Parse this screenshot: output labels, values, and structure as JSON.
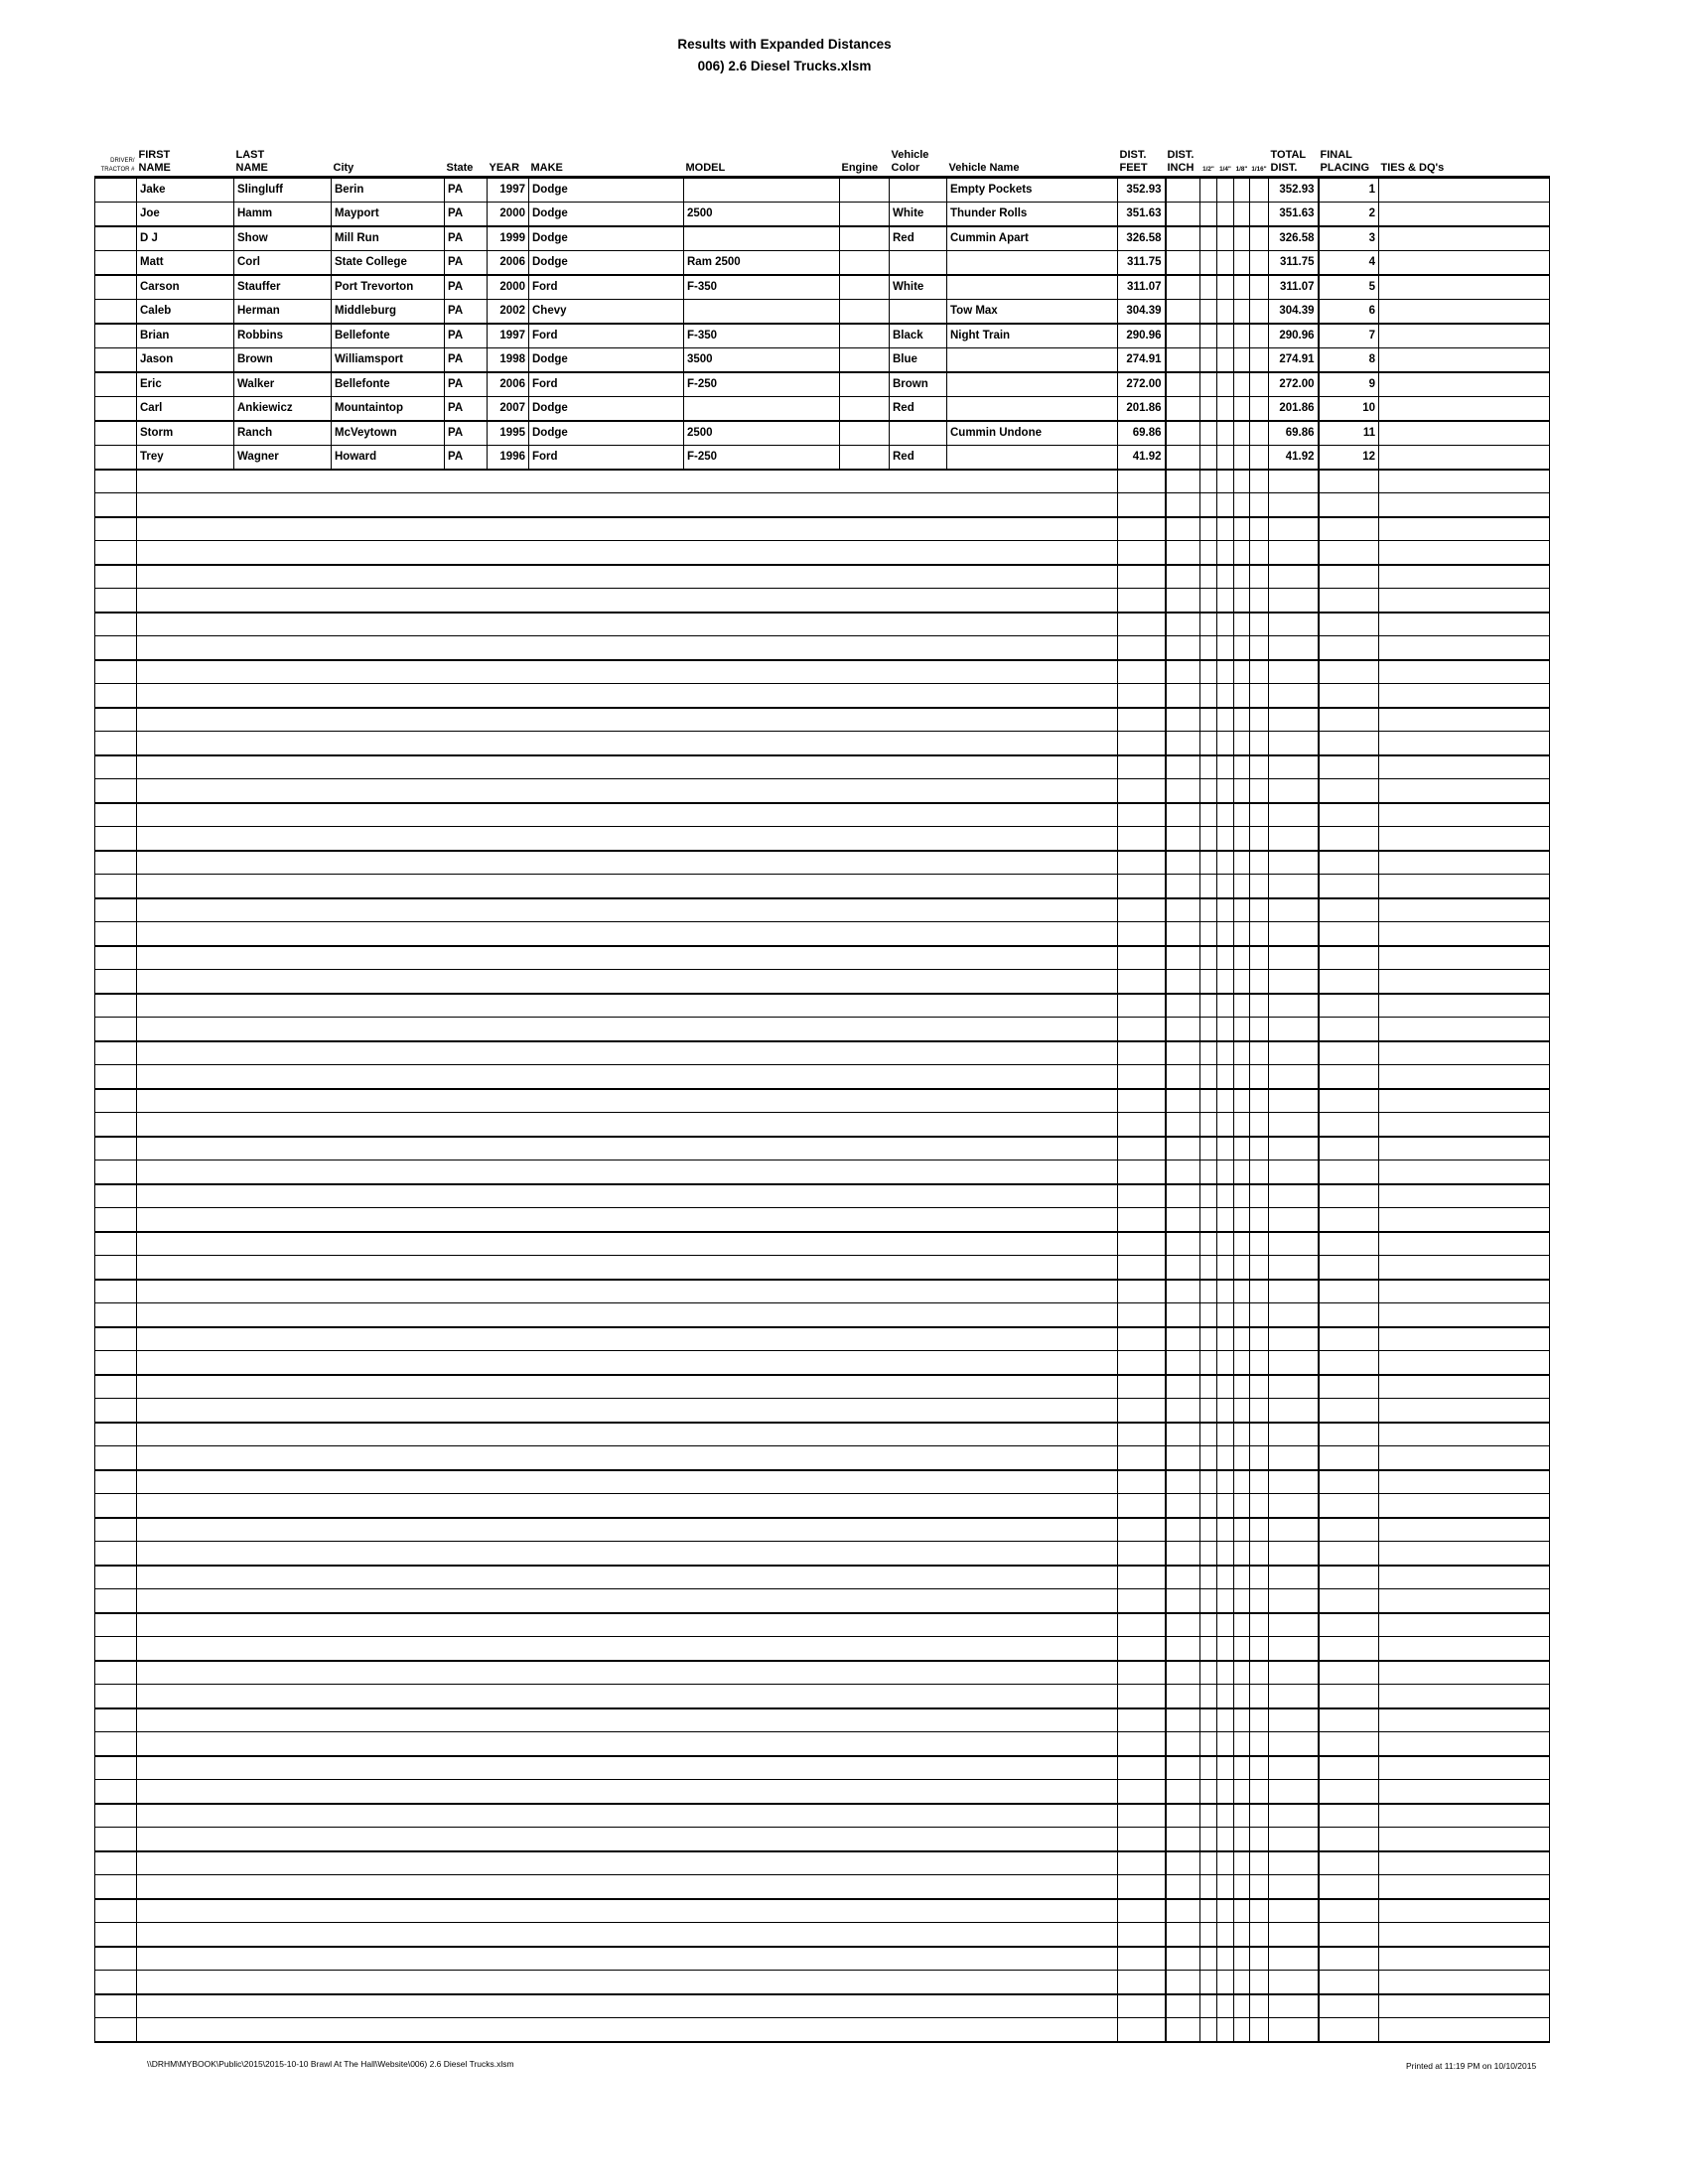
{
  "title": {
    "line1": "Results with Expanded Distances",
    "line2": "006) 2.6 Diesel Trucks.xlsm"
  },
  "table": {
    "headers": [
      "DRIVER/\nTRACTOR #",
      "FIRST\nNAME",
      "LAST\nNAME",
      "City",
      "State",
      "YEAR",
      "MAKE",
      "MODEL",
      "Engine",
      "Vehicle\nColor",
      "Vehicle Name",
      "DIST.\nFEET",
      "DIST.\nINCH",
      "1/2\"",
      "1/4\"",
      "1/8\"",
      "1/16\"",
      "TOTAL\nDIST.",
      "FINAL\nPLACING",
      "TIES & DQ's"
    ],
    "rows": [
      {
        "first": "Jake",
        "last": "Slingluff",
        "city": "Berin",
        "state": "PA",
        "year": "1997",
        "make": "Dodge",
        "model": "",
        "engine": "",
        "color": "",
        "vehicle_name": "Empty Pockets",
        "dist_feet": "352.93",
        "dist_inch": "",
        "total_dist": "352.93",
        "placing": "1",
        "ties": ""
      },
      {
        "first": "Joe",
        "last": "Hamm",
        "city": "Mayport",
        "state": "PA",
        "year": "2000",
        "make": "Dodge",
        "model": "2500",
        "engine": "",
        "color": "White",
        "vehicle_name": "Thunder Rolls",
        "dist_feet": "351.63",
        "dist_inch": "",
        "total_dist": "351.63",
        "placing": "2",
        "ties": ""
      },
      {
        "first": "D J",
        "last": "Show",
        "city": "Mill Run",
        "state": "PA",
        "year": "1999",
        "make": "Dodge",
        "model": "",
        "engine": "",
        "color": "Red",
        "vehicle_name": "Cummin Apart",
        "dist_feet": "326.58",
        "dist_inch": "",
        "total_dist": "326.58",
        "placing": "3",
        "ties": ""
      },
      {
        "first": "Matt",
        "last": "Corl",
        "city": "State College",
        "state": "PA",
        "year": "2006",
        "make": "Dodge",
        "model": "Ram 2500",
        "engine": "",
        "color": "",
        "vehicle_name": "",
        "dist_feet": "311.75",
        "dist_inch": "",
        "total_dist": "311.75",
        "placing": "4",
        "ties": ""
      },
      {
        "first": "Carson",
        "last": "Stauffer",
        "city": "Port Trevorton",
        "state": "PA",
        "year": "2000",
        "make": "Ford",
        "model": "F-350",
        "engine": "",
        "color": "White",
        "vehicle_name": "",
        "dist_feet": "311.07",
        "dist_inch": "",
        "total_dist": "311.07",
        "placing": "5",
        "ties": ""
      },
      {
        "first": "Caleb",
        "last": "Herman",
        "city": "Middleburg",
        "state": "PA",
        "year": "2002",
        "make": "Chevy",
        "model": "",
        "engine": "",
        "color": "",
        "vehicle_name": "Tow Max",
        "dist_feet": "304.39",
        "dist_inch": "",
        "total_dist": "304.39",
        "placing": "6",
        "ties": ""
      },
      {
        "first": "Brian",
        "last": "Robbins",
        "city": "Bellefonte",
        "state": "PA",
        "year": "1997",
        "make": "Ford",
        "model": "F-350",
        "engine": "",
        "color": "Black",
        "vehicle_name": "Night Train",
        "dist_feet": "290.96",
        "dist_inch": "",
        "total_dist": "290.96",
        "placing": "7",
        "ties": ""
      },
      {
        "first": "Jason",
        "last": "Brown",
        "city": "Williamsport",
        "state": "PA",
        "year": "1998",
        "make": "Dodge",
        "model": "3500",
        "engine": "",
        "color": "Blue",
        "vehicle_name": "",
        "dist_feet": "274.91",
        "dist_inch": "",
        "total_dist": "274.91",
        "placing": "8",
        "ties": ""
      },
      {
        "first": "Eric",
        "last": "Walker",
        "city": "Bellefonte",
        "state": "PA",
        "year": "2006",
        "make": "Ford",
        "model": "F-250",
        "engine": "",
        "color": "Brown",
        "vehicle_name": "",
        "dist_feet": "272.00",
        "dist_inch": "",
        "total_dist": "272.00",
        "placing": "9",
        "ties": ""
      },
      {
        "first": "Carl",
        "last": "Ankiewicz",
        "city": "Mountaintop",
        "state": "PA",
        "year": "2007",
        "make": "Dodge",
        "model": "",
        "engine": "",
        "color": "Red",
        "vehicle_name": "",
        "dist_feet": "201.86",
        "dist_inch": "",
        "total_dist": "201.86",
        "placing": "10",
        "ties": ""
      },
      {
        "first": "Storm",
        "last": "Ranch",
        "city": "McVeytown",
        "state": "PA",
        "year": "1995",
        "make": "Dodge",
        "model": "2500",
        "engine": "",
        "color": "",
        "vehicle_name": "Cummin Undone",
        "dist_feet": "69.86",
        "dist_inch": "",
        "total_dist": "69.86",
        "placing": "11",
        "ties": ""
      },
      {
        "first": "Trey",
        "last": "Wagner",
        "city": "Howard",
        "state": "PA",
        "year": "1996",
        "make": "Ford",
        "model": "F-250",
        "engine": "",
        "color": "Red",
        "vehicle_name": "",
        "dist_feet": "41.92",
        "dist_inch": "",
        "total_dist": "41.92",
        "placing": "12",
        "ties": ""
      }
    ]
  },
  "footer": {
    "left": "\\\\DRHM\\MYBOOK\\Public\\2015\\2015-10-10 Brawl At The Hall\\Website\\006) 2.6 Diesel Trucks.xlsm",
    "right": "Printed at 11:19 PM on 10/10/2015"
  },
  "colors": {
    "grid": "#000000",
    "text": "#000000",
    "background": "#ffffff"
  }
}
